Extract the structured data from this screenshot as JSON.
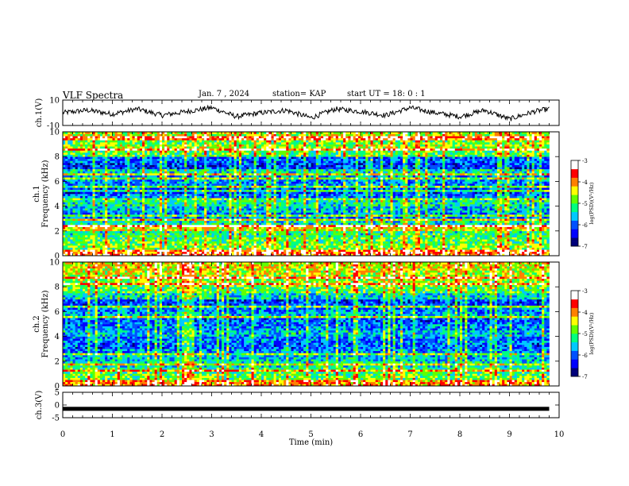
{
  "header": {
    "title": "VLF Spectra",
    "date": "Jan. 7 , 2024",
    "station": "station= KAP",
    "start": "start UT = 18: 0 : 1"
  },
  "colors": {
    "spectrogram_scale": [
      "#00007a",
      "#0000ff",
      "#0050ff",
      "#00c8ff",
      "#00ff80",
      "#60ff00",
      "#ffff00",
      "#ff8000",
      "#ff0000",
      "#ffffff"
    ],
    "waveform": "#000000",
    "frame": "#000000"
  },
  "chart_data": [
    {
      "type": "line",
      "name": "ch1-waveform",
      "ylabel": "ch.1(V)",
      "ylim": [
        -10,
        10
      ],
      "ytick_labels": [
        "10",
        "-10"
      ],
      "xlim": [
        0,
        10
      ],
      "data_extent_min": 9.8,
      "x": [
        0,
        0.5,
        1,
        1.5,
        2,
        2.5,
        3,
        3.5,
        4,
        4.5,
        5,
        5.5,
        6,
        6.5,
        7,
        7.5,
        8,
        8.5,
        9,
        9.5,
        9.8
      ],
      "y": [
        0,
        2,
        -1,
        3,
        -2,
        1,
        4,
        -3,
        0,
        2,
        -4,
        3,
        1,
        -2,
        4,
        0,
        -3,
        2,
        -5,
        1,
        3
      ]
    },
    {
      "type": "heatmap",
      "name": "ch1-spectrogram",
      "ylabel": "ch.1 Frequency (kHz)",
      "ylim": [
        0,
        10
      ],
      "ytick_labels": [
        "0",
        "2",
        "4",
        "6",
        "8",
        "10"
      ],
      "xlim": [
        0,
        10
      ],
      "data_extent_min": 9.8,
      "colorbar": {
        "label": "log(PSD)(V²/Hz)",
        "range": [
          -7,
          -3
        ],
        "tick_labels": [
          "-3",
          "-4",
          "-5",
          "-6",
          "-7"
        ]
      },
      "freq_khz": [
        0.25,
        0.75,
        1.25,
        1.75,
        2.25,
        2.75,
        3.25,
        3.75,
        4.25,
        4.75,
        5.25,
        5.75,
        6.25,
        6.75,
        7.25,
        7.75,
        8.25,
        8.75,
        9.25,
        9.75
      ],
      "mean_log_psd": [
        -3.8,
        -4.8,
        -5.0,
        -5.2,
        -4.4,
        -5.4,
        -5.9,
        -5.6,
        -5.3,
        -5.9,
        -6.1,
        -5.9,
        -5.8,
        -5.4,
        -6.2,
        -6.0,
        -5.0,
        -4.7,
        -4.9,
        -4.6
      ]
    },
    {
      "type": "heatmap",
      "name": "ch2-spectrogram",
      "ylabel": "ch.2 Frequency (kHz)",
      "ylim": [
        0,
        10
      ],
      "ytick_labels": [
        "0",
        "2",
        "4",
        "6",
        "8",
        "10"
      ],
      "xlim": [
        0,
        10
      ],
      "data_extent_min": 9.8,
      "colorbar": {
        "label": "log(PSD)(V²/Hz)",
        "range": [
          -7,
          -3
        ],
        "tick_labels": [
          "-3",
          "-4",
          "-5",
          "-6",
          "-7"
        ]
      },
      "freq_khz": [
        0.25,
        0.75,
        1.25,
        1.75,
        2.25,
        2.75,
        3.25,
        3.75,
        4.25,
        4.75,
        5.25,
        5.75,
        6.25,
        6.75,
        7.25,
        7.75,
        8.25,
        8.75,
        9.25,
        9.75
      ],
      "mean_log_psd": [
        -4.0,
        -4.9,
        -5.1,
        -5.4,
        -5.6,
        -5.8,
        -6.0,
        -5.9,
        -5.6,
        -5.9,
        -6.0,
        -5.7,
        -5.9,
        -6.1,
        -5.5,
        -5.0,
        -4.8,
        -4.7,
        -4.5,
        -4.4
      ]
    },
    {
      "type": "line",
      "name": "ch3-waveform",
      "ylabel": "ch.3(V)",
      "ylim": [
        -5,
        5
      ],
      "ytick_labels": [
        "5",
        "0",
        "-5"
      ],
      "xlim": [
        0,
        10
      ],
      "xtick_labels": [
        "0",
        "1",
        "2",
        "3",
        "4",
        "5",
        "6",
        "7",
        "8",
        "9",
        "10"
      ],
      "xlabel": "Time (min)",
      "data_extent_min": 9.8,
      "x": [
        0,
        9.8
      ],
      "y": [
        -1.5,
        -1.5
      ]
    }
  ]
}
